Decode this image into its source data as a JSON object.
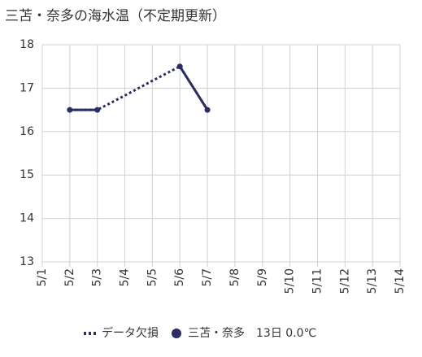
{
  "chart_data": {
    "type": "line",
    "title": "三苫・奈多の海水温（不定期更新）",
    "categories": [
      "5/1",
      "5/2",
      "5/3",
      "5/4",
      "5/5",
      "5/6",
      "5/7",
      "5/8",
      "5/9",
      "5/10",
      "5/11",
      "5/12",
      "5/13",
      "5/14"
    ],
    "series": [
      {
        "name": "データ欠損",
        "color": "#2b2d63",
        "dashed": true,
        "values": [
          null,
          16.5,
          16.5,
          16.83,
          17.17,
          17.5,
          16.5,
          null,
          null,
          null,
          null,
          null,
          null,
          null
        ]
      },
      {
        "name": "三苫・奈多",
        "color": "#2b2d63",
        "dashed": false,
        "note": "13日 0.0℃",
        "values": [
          null,
          16.5,
          16.5,
          null,
          null,
          17.5,
          16.5,
          null,
          null,
          null,
          null,
          null,
          null,
          null
        ]
      }
    ],
    "ylim": [
      13,
      18
    ],
    "yticks": [
      13,
      14,
      15,
      16,
      17,
      18
    ],
    "grid": true
  }
}
